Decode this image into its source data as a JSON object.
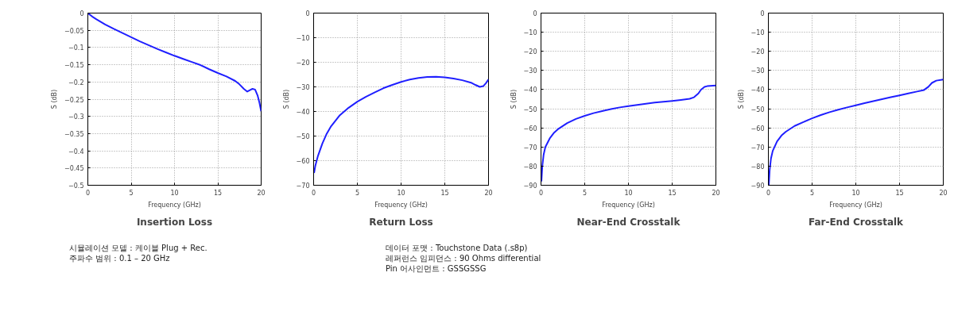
{
  "chart_data": [
    {
      "type": "line",
      "title": "Insertion Loss",
      "xlabel": "Frequency (GHz)",
      "ylabel": "S (dB)",
      "xlim": [
        0,
        20
      ],
      "xticks": [
        0,
        5,
        10,
        15,
        20
      ],
      "ylim": [
        -0.5,
        0
      ],
      "yticks": [
        -0.5,
        -0.45,
        -0.4,
        -0.35,
        -0.3,
        -0.25,
        -0.2,
        -0.15,
        -0.1,
        -0.05,
        0
      ],
      "grid": true,
      "marker": "none",
      "line_style": "solid",
      "series": [
        {
          "color": "#1f1fff",
          "x": [
            0,
            0.5,
            1,
            2,
            3,
            4,
            5,
            6,
            7,
            8,
            9,
            10,
            11,
            12,
            13,
            14,
            15,
            16,
            17,
            17.5,
            18,
            18.4,
            18.7,
            19,
            19.3,
            19.6,
            19.8,
            20
          ],
          "values": [
            0,
            -0.01,
            -0.018,
            -0.033,
            -0.046,
            -0.058,
            -0.07,
            -0.082,
            -0.093,
            -0.104,
            -0.114,
            -0.124,
            -0.133,
            -0.142,
            -0.151,
            -0.163,
            -0.174,
            -0.184,
            -0.197,
            -0.207,
            -0.22,
            -0.228,
            -0.224,
            -0.22,
            -0.222,
            -0.24,
            -0.26,
            -0.285
          ]
        }
      ]
    },
    {
      "type": "line",
      "title": "Return Loss",
      "xlabel": "Frequency (GHz)",
      "ylabel": "S (dB)",
      "xlim": [
        0,
        20
      ],
      "xticks": [
        0,
        5,
        10,
        15,
        20
      ],
      "ylim": [
        -70,
        0
      ],
      "yticks": [
        -70,
        -60,
        -50,
        -40,
        -30,
        -20,
        -10,
        0
      ],
      "grid": true,
      "marker": "none",
      "line_style": "solid",
      "series": [
        {
          "color": "#1f1fff",
          "x": [
            0.05,
            0.2,
            0.5,
            1,
            1.5,
            2,
            3,
            4,
            5,
            6,
            7,
            8,
            9,
            10,
            11,
            12,
            13,
            14,
            15,
            16,
            17,
            18,
            18.5,
            19,
            19.4,
            19.7,
            20
          ],
          "values": [
            -65,
            -62,
            -58,
            -53,
            -49,
            -46,
            -41.5,
            -38.5,
            -36,
            -34,
            -32.2,
            -30.5,
            -29.2,
            -28,
            -27,
            -26.4,
            -26,
            -25.9,
            -26.1,
            -26.6,
            -27.3,
            -28.3,
            -29.2,
            -30,
            -29.7,
            -28.5,
            -27
          ]
        }
      ]
    },
    {
      "type": "line",
      "title": "Near-End Crosstalk",
      "xlabel": "Frequency (GHz)",
      "ylabel": "S (dB)",
      "xlim": [
        0,
        20
      ],
      "xticks": [
        0,
        5,
        10,
        15,
        20
      ],
      "ylim": [
        -90,
        0
      ],
      "yticks": [
        -90,
        -80,
        -70,
        -60,
        -50,
        -40,
        -30,
        -20,
        -10,
        0
      ],
      "grid": true,
      "marker": "none",
      "line_style": "solid",
      "series": [
        {
          "color": "#1f1fff",
          "x": [
            0.05,
            0.15,
            0.3,
            0.5,
            1,
            1.5,
            2,
            3,
            4,
            5,
            6,
            7,
            8,
            9,
            10,
            11,
            12,
            13,
            14,
            15,
            16,
            17,
            17.5,
            18,
            18.3,
            18.7,
            19,
            20
          ],
          "values": [
            -88,
            -80,
            -74,
            -70,
            -65.5,
            -62.5,
            -60.5,
            -57.5,
            -55.3,
            -53.7,
            -52.3,
            -51.2,
            -50.2,
            -49.3,
            -48.6,
            -48,
            -47.4,
            -46.8,
            -46.3,
            -45.9,
            -45.4,
            -44.8,
            -44,
            -42,
            -40,
            -38.6,
            -38.2,
            -37.8
          ]
        }
      ]
    },
    {
      "type": "line",
      "title": "Far-End Crosstalk",
      "xlabel": "Frequency (GHz)",
      "ylabel": "S (dB)",
      "xlim": [
        0,
        20
      ],
      "xticks": [
        0,
        5,
        10,
        15,
        20
      ],
      "ylim": [
        -90,
        0
      ],
      "yticks": [
        -90,
        -80,
        -70,
        -60,
        -50,
        -40,
        -30,
        -20,
        -10,
        0
      ],
      "grid": true,
      "marker": "none",
      "line_style": "solid",
      "series": [
        {
          "color": "#1f1fff",
          "x": [
            0.05,
            0.15,
            0.3,
            0.5,
            1,
            1.5,
            2,
            3,
            4,
            5,
            6,
            7,
            8,
            9,
            10,
            11,
            12,
            13,
            14,
            15,
            16,
            17,
            17.8,
            18.3,
            18.7,
            19.2,
            20
          ],
          "values": [
            -90,
            -82,
            -76,
            -72,
            -67,
            -64,
            -62,
            -59,
            -57,
            -55,
            -53.3,
            -51.8,
            -50.5,
            -49.3,
            -48.2,
            -47.1,
            -46,
            -45,
            -44,
            -43,
            -42,
            -41,
            -40.2,
            -38.5,
            -36.5,
            -35.3,
            -34.7
          ]
        }
      ]
    },
    {
      "type": "other",
      "annotations": [
        "시뮬레이션 모델 :  케이블 Plug + Rec.",
        "주파수 범위 :  0.1 – 20 GHz",
        "데이터 포맷 :  Touchstone Data (.s8p)",
        "레퍼런스 임피던스 :  90 Ohms differential",
        "Pin 어사인먼트 :  GSSGSSG"
      ]
    }
  ]
}
